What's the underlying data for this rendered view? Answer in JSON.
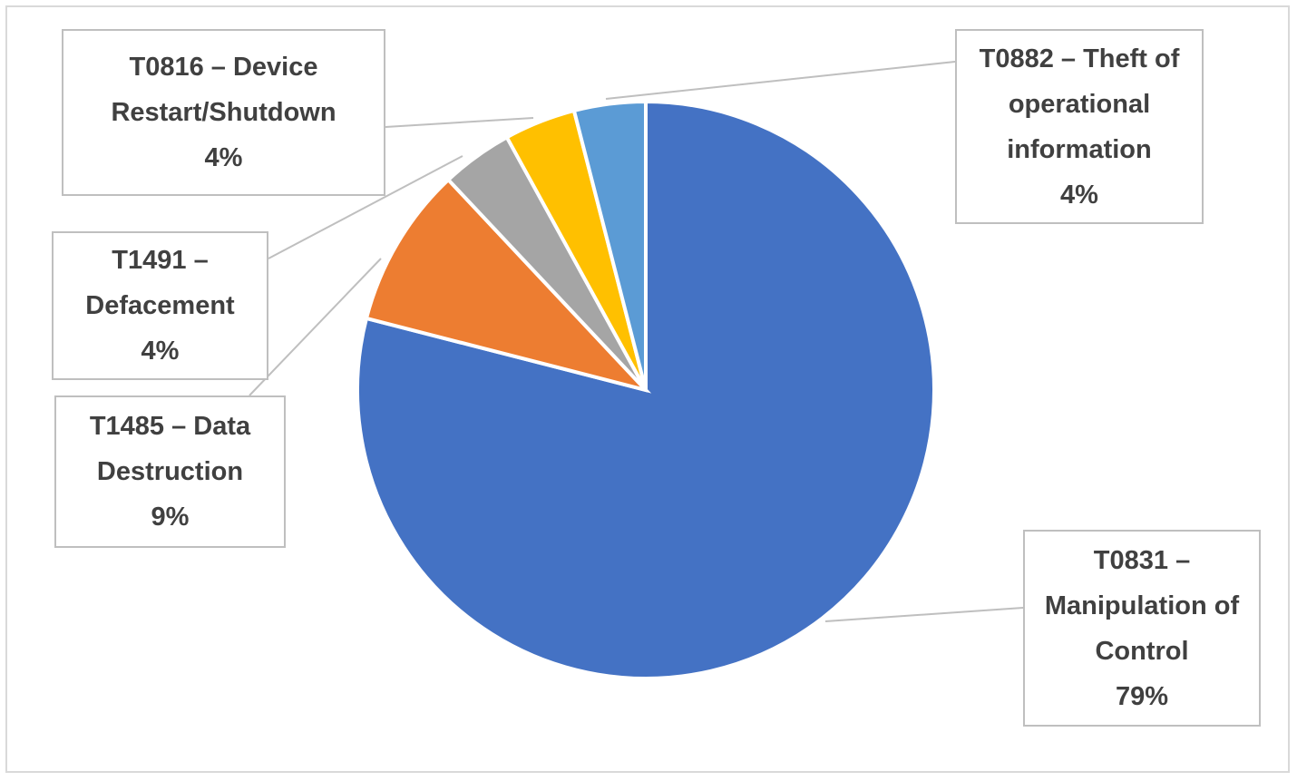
{
  "chart_data": {
    "type": "pie",
    "categories": [
      "T0831 – Manipulation of Control",
      "T1485 – Data Destruction",
      "T1491 – Defacement",
      "T0816 – Device Restart/Shutdown",
      "T0882 – Theft of operational information"
    ],
    "values": [
      79,
      9,
      4,
      4,
      4
    ],
    "value_labels": [
      "79%",
      "9%",
      "4%",
      "4%",
      "4%"
    ],
    "colors": [
      "#4472c4",
      "#ed7d31",
      "#a5a5a5",
      "#ffc000",
      "#5b9bd5"
    ]
  }
}
